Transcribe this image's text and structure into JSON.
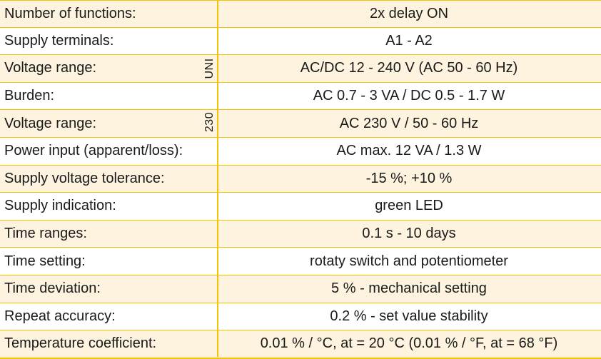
{
  "colors": {
    "border": "#f2c500",
    "shaded_row": "#fdf3df",
    "text": "#1a1a1a"
  },
  "groups": {
    "uni": "UNI",
    "v230": "230"
  },
  "rows": [
    {
      "label": "Number of functions:",
      "value": "2x delay ON"
    },
    {
      "label": "Supply terminals:",
      "value": "A1 - A2"
    },
    {
      "label": "Voltage range:",
      "value": "AC/DC 12 - 240 V (AC 50 - 60 Hz)"
    },
    {
      "label": "Burden:",
      "value": "AC 0.7 - 3 VA / DC 0.5 - 1.7 W"
    },
    {
      "label": "Voltage range:",
      "value": "AC 230 V / 50 - 60 Hz"
    },
    {
      "label": "Power input (apparent/loss):",
      "value": "AC max. 12 VA / 1.3 W"
    },
    {
      "label": "Supply voltage tolerance:",
      "value": "-15 %; +10 %"
    },
    {
      "label": "Supply indication:",
      "value": "green LED"
    },
    {
      "label": "Time ranges:",
      "value": "0.1 s - 10 days"
    },
    {
      "label": "Time setting:",
      "value": "rotaty switch and potentiometer"
    },
    {
      "label": "Time deviation:",
      "value": "5 % - mechanical setting"
    },
    {
      "label": "Repeat accuracy:",
      "value": "0.2 % - set value stability"
    },
    {
      "label": "Temperature coefficient:",
      "value": "0.01 % / °C, at = 20 °C (0.01 % / °F, at = 68 °F)"
    }
  ]
}
